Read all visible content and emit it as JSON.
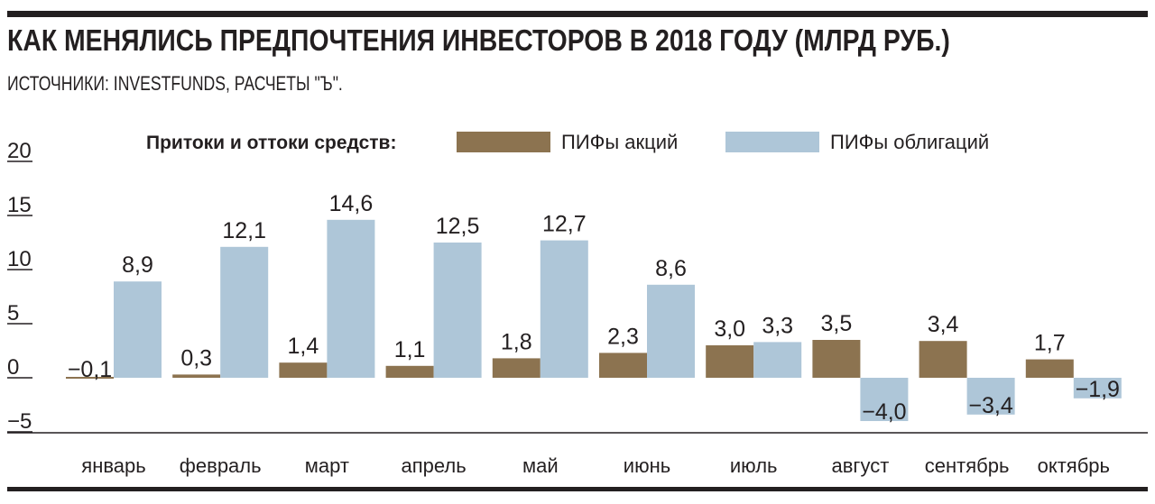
{
  "header": {
    "title": "КАК МЕНЯЛИСЬ ПРЕДПОЧТЕНИЯ ИНВЕСТОРОВ В 2018 ГОДУ (МЛРД РУБ.)",
    "subtitle": "ИСТОЧНИКИ: INVESTFUNDS, РАСЧЕТЫ \"Ъ\"."
  },
  "chart_data": {
    "type": "bar",
    "title": "КАК МЕНЯЛИСЬ ПРЕДПОЧТЕНИЯ ИНВЕСТОРОВ В 2018 ГОДУ (МЛРД РУБ.)",
    "legend_title": "Притоки и оттоки средств:",
    "legend_placement": "top",
    "categories": [
      "январь",
      "февраль",
      "март",
      "апрель",
      "май",
      "июнь",
      "июль",
      "август",
      "сентябрь",
      "октябрь"
    ],
    "series": [
      {
        "name": "ПИФы акций",
        "color": "#8c7350",
        "values": [
          -0.1,
          0.3,
          1.4,
          1.1,
          1.8,
          2.3,
          3.0,
          3.5,
          3.4,
          1.7
        ],
        "labels": [
          "−0,1",
          "0,3",
          "1,4",
          "1,1",
          "1,8",
          "2,3",
          "3,0",
          "3,5",
          "3,4",
          "1,7"
        ]
      },
      {
        "name": "ПИФы облигаций",
        "color": "#aec6d8",
        "values": [
          8.9,
          12.1,
          14.6,
          12.5,
          12.7,
          8.6,
          3.3,
          -4.0,
          -3.4,
          -1.9
        ],
        "labels": [
          "8,9",
          "12,1",
          "14,6",
          "12,5",
          "12,7",
          "8,6",
          "3,3",
          "−4,0",
          "−3,4",
          "−1,9"
        ]
      }
    ],
    "yticks": [
      20,
      15,
      10,
      5,
      0,
      -5
    ],
    "ytick_labels": [
      "20",
      "15",
      "10",
      "5",
      "0",
      "−5"
    ],
    "ylim": [
      -5,
      20
    ],
    "xlabel": "",
    "ylabel": "",
    "grid": false
  }
}
